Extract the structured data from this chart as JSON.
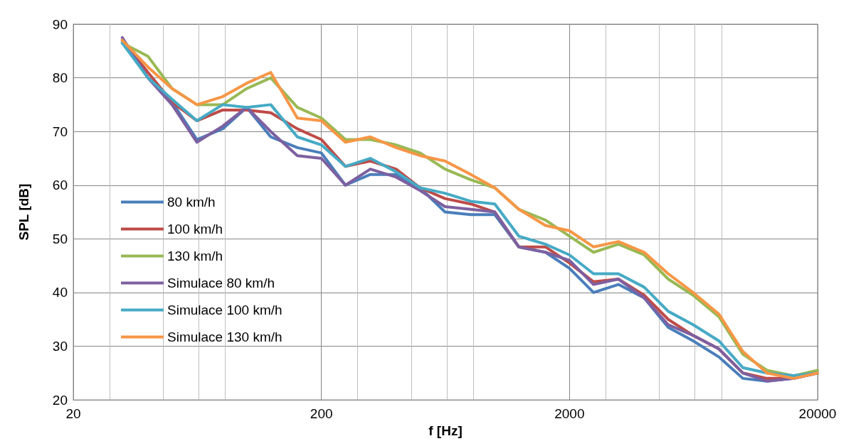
{
  "chart_data": {
    "type": "line",
    "xlabel": "f [Hz]",
    "ylabel": "SPL [dB]",
    "x": [
      31.5,
      40,
      50,
      63,
      80,
      100,
      125,
      160,
      200,
      250,
      315,
      400,
      500,
      630,
      800,
      1000,
      1250,
      1600,
      2000,
      2500,
      3150,
      4000,
      5000,
      6300,
      8000,
      10000,
      12500,
      16000,
      20000
    ],
    "series": [
      {
        "name": "80 km/h",
        "color": "#4a7ebb",
        "values": [
          87,
          80,
          75.5,
          68.5,
          70.5,
          74.5,
          69,
          67,
          66,
          60,
          62,
          62,
          59.5,
          55,
          54.5,
          54.5,
          48.5,
          47.5,
          44.5,
          40,
          41.5,
          39,
          33.5,
          31,
          28,
          24,
          23.5,
          24,
          25
        ]
      },
      {
        "name": "100 km/h",
        "color": "#be4b48",
        "values": [
          87,
          81,
          75.5,
          72,
          74,
          74,
          73.5,
          70.5,
          68.5,
          63.5,
          64.5,
          63,
          59.5,
          57.5,
          56.5,
          55,
          48.5,
          48.5,
          45.5,
          42,
          42.5,
          39.5,
          35,
          32,
          29.5,
          25,
          24,
          24,
          25
        ]
      },
      {
        "name": "130 km/h",
        "color": "#98b954",
        "values": [
          86.5,
          84,
          78,
          75,
          75,
          78,
          80,
          74.5,
          72.5,
          68.5,
          68.5,
          67.5,
          66,
          63,
          61,
          59.5,
          55.5,
          53.5,
          50.5,
          47.5,
          49,
          47,
          42.5,
          39.5,
          35.5,
          28.5,
          25.5,
          24.5,
          25.5
        ]
      },
      {
        "name": "Simulace 80 km/h",
        "color": "#7d60a0",
        "values": [
          87.5,
          80,
          75,
          68,
          71,
          74.5,
          70,
          65.5,
          65,
          60,
          63,
          61.5,
          59,
          56,
          55.5,
          55,
          48.5,
          47.5,
          46,
          41.5,
          42.5,
          39,
          34,
          32,
          29.5,
          25,
          23.5,
          24,
          25
        ]
      },
      {
        "name": "Simulace 100 km/h",
        "color": "#46aac5",
        "values": [
          86.5,
          80,
          76,
          72,
          75,
          74.5,
          75,
          69,
          67.5,
          63.5,
          65,
          62.5,
          59.5,
          58.5,
          57,
          56.5,
          50.5,
          49,
          47,
          43.5,
          43.5,
          41,
          36.5,
          34,
          31,
          26,
          25,
          24.5,
          25
        ]
      },
      {
        "name": "Simulace 130 km/h",
        "color": "#f79646",
        "values": [
          87,
          82,
          78,
          75,
          76.5,
          79,
          81,
          72.5,
          72,
          68,
          69,
          67,
          65.5,
          64.5,
          62,
          59.5,
          55.5,
          52.5,
          51.5,
          48.5,
          49.5,
          47.5,
          43.5,
          40,
          36,
          29,
          25,
          24,
          25
        ]
      }
    ],
    "xlim": [
      20,
      20000
    ],
    "xticks": [
      20,
      200,
      2000,
      20000
    ],
    "ylim": [
      20,
      90
    ],
    "yticks": [
      20,
      30,
      40,
      50,
      60,
      70,
      80,
      90
    ],
    "log": "x",
    "grid": true,
    "legend": "left",
    "marker": "none",
    "line_style": "solid"
  }
}
